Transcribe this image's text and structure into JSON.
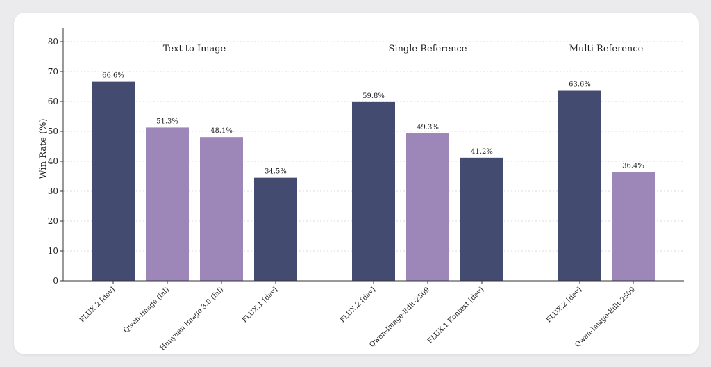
{
  "colors": {
    "dark": "#444b70",
    "light": "#9d87b9",
    "grid": "#d0d0d0",
    "axis": "#333333"
  },
  "chart_data": {
    "type": "bar",
    "ylabel": "Win Rate (%)",
    "ylim": [
      0,
      85
    ],
    "yticks": [
      0,
      10,
      20,
      30,
      40,
      50,
      60,
      70,
      80
    ],
    "grid": true,
    "groups": [
      {
        "title": "Text to Image",
        "bars": [
          {
            "category": "FLUX.2 [dev]",
            "value": 66.6,
            "label": "66.6%",
            "color": "dark"
          },
          {
            "category": "Qwen-Image (fal)",
            "value": 51.3,
            "label": "51.3%",
            "color": "light"
          },
          {
            "category": "Hunyuan Image 3.0 (fal)",
            "value": 48.1,
            "label": "48.1%",
            "color": "light"
          },
          {
            "category": "FLUX.1 [dev]",
            "value": 34.5,
            "label": "34.5%",
            "color": "dark"
          }
        ]
      },
      {
        "title": "Single Reference",
        "bars": [
          {
            "category": "FLUX.2 [dev]",
            "value": 59.8,
            "label": "59.8%",
            "color": "dark"
          },
          {
            "category": "Qwen-Image-Edit-2509",
            "value": 49.3,
            "label": "49.3%",
            "color": "light"
          },
          {
            "category": "FLUX.1 Kontext [dev]",
            "value": 41.2,
            "label": "41.2%",
            "color": "dark"
          }
        ]
      },
      {
        "title": "Multi Reference",
        "bars": [
          {
            "category": "FLUX.2 [dev]",
            "value": 63.6,
            "label": "63.6%",
            "color": "dark"
          },
          {
            "category": "Qwen-Image-Edit-2509",
            "value": 36.4,
            "label": "36.4%",
            "color": "light"
          }
        ]
      }
    ]
  }
}
